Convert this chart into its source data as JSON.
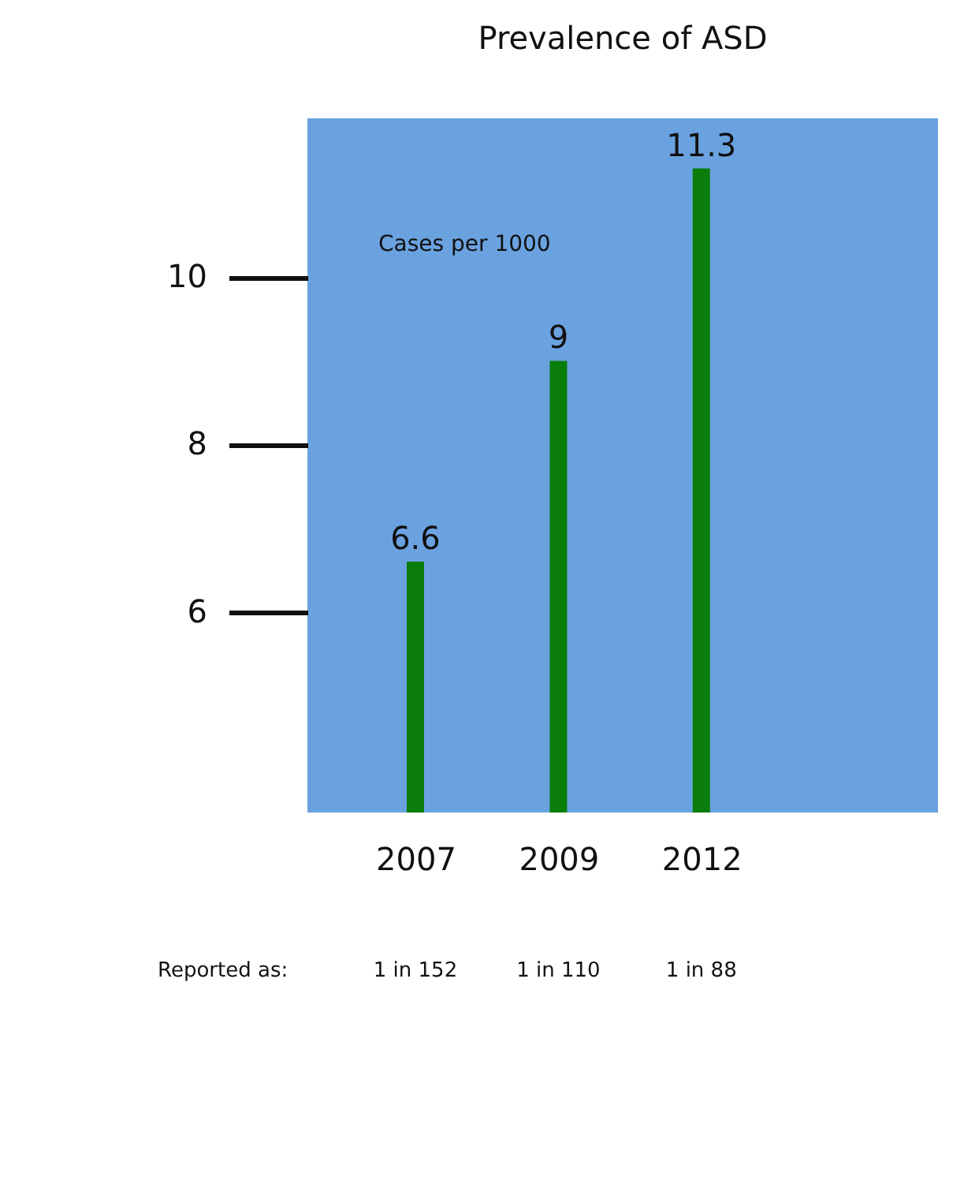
{
  "chart_data": {
    "type": "bar",
    "title": "Prevalence of ASD",
    "ylabel": "Cases per 1000",
    "categories": [
      "2007",
      "2009",
      "2012"
    ],
    "values": [
      6.6,
      9,
      11.3
    ],
    "color": "#0b7d0b",
    "data_labels": true,
    "ylim": [
      3.6,
      11.9
    ],
    "yticks": [
      6,
      8,
      10
    ],
    "grid": false,
    "annotations": [
      "Reported as:",
      "1 in 152",
      "1 in 110",
      "1 in 88"
    ]
  }
}
